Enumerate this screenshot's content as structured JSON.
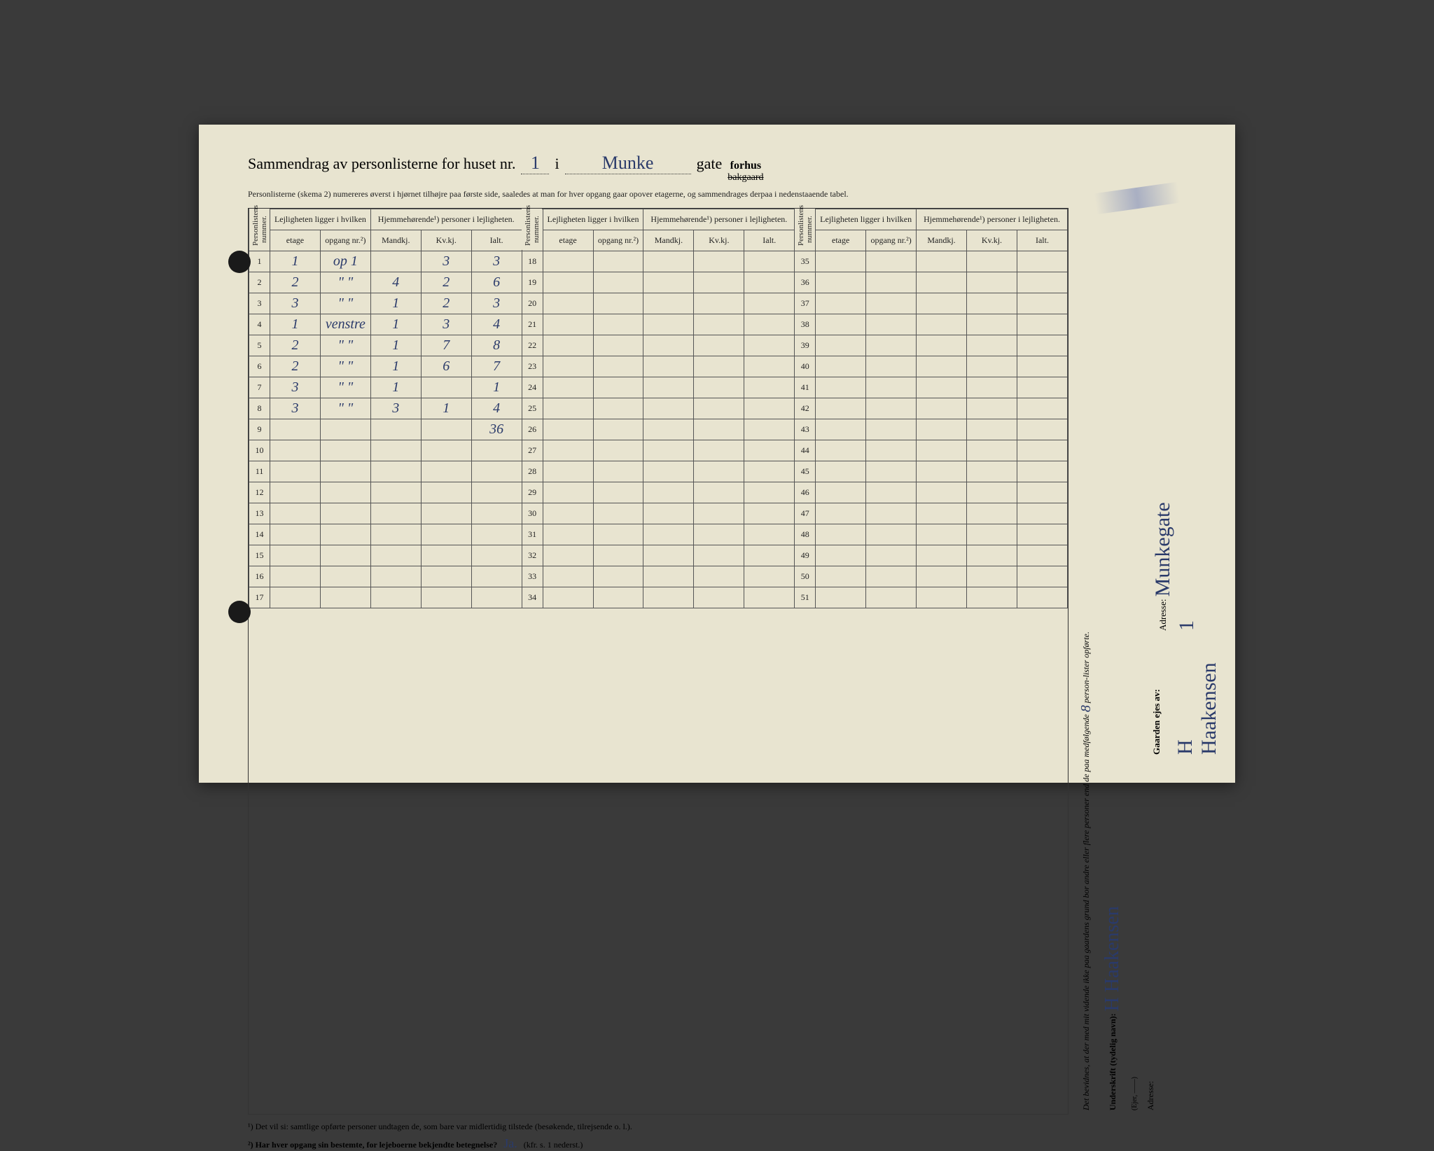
{
  "header": {
    "title_prefix": "Sammendrag av personlisterne for huset nr.",
    "house_nr": "1",
    "i": "i",
    "street": "Munke",
    "gate": "gate",
    "forhus": "forhus",
    "bakgaard_struck": "bakgaard"
  },
  "subheader": "Personlisterne (skema 2) numereres øverst i hjørnet tilhøjre paa første side, saaledes at man for hver opgang gaar opover etagerne, og sammendrages derpaa i nedenstaaende tabel.",
  "columns": {
    "rowhead": "Personlistens nummer.",
    "group_lejl": "Lejligheten ligger i hvilken",
    "group_pers": "Hjemmehørende¹) personer i lejligheten.",
    "etage": "etage",
    "opgang": "opgang nr.²)",
    "mandkj": "Mandkj.",
    "kvkj": "Kv.kj.",
    "ialt": "Ialt."
  },
  "block1_start": 1,
  "block2_start": 18,
  "block3_start": 35,
  "rows_per_block": 17,
  "data_rows": [
    {
      "n": 1,
      "etage": "1",
      "opgang": "op 1",
      "m": "",
      "k": "3",
      "i": "3"
    },
    {
      "n": 2,
      "etage": "2",
      "opgang": "\" \"",
      "m": "4",
      "k": "2",
      "i": "6"
    },
    {
      "n": 3,
      "etage": "3",
      "opgang": "\" \"",
      "m": "1",
      "k": "2",
      "i": "3"
    },
    {
      "n": 4,
      "etage": "1",
      "opgang": "venstre",
      "m": "1",
      "k": "3",
      "i": "4"
    },
    {
      "n": 5,
      "etage": "2",
      "opgang": "\" \"",
      "m": "1",
      "k": "7",
      "i": "8"
    },
    {
      "n": 6,
      "etage": "2",
      "opgang": "\" \"",
      "m": "1",
      "k": "6",
      "i": "7"
    },
    {
      "n": 7,
      "etage": "3",
      "opgang": "\" \"",
      "m": "1",
      "k": "",
      "i": "1"
    },
    {
      "n": 8,
      "etage": "3",
      "opgang": "\" \"",
      "m": "3",
      "k": "1",
      "i": "4"
    }
  ],
  "sum_row": {
    "n": 9,
    "ialt": "36"
  },
  "footer": {
    "note1": "¹)  Det vil si: samtlige opførte personer undtagen de, som bare var midlertidig tilstede (besøkende, tilrejsende o. l.).",
    "note2_prefix": "²)  Har hver opgang sin bestemte, for lejeboerne bekjendte betegnelse?",
    "note2_answer": "Ja.",
    "note2_suffix": "(kfr. s. 1 nederst.)"
  },
  "side_upper": {
    "attest": "Det bevidnes, at der med mit vidende ikke paa gaardens grund bor andre eller flere personer end de paa medfølgende",
    "count": "8",
    "attest2": "person-lister opførte.",
    "underskrift_label": "Underskrift (tydelig navn):",
    "signature": "H Haakensen",
    "ejer": "(Ejer, ——)",
    "adresse_label": "Adresse:"
  },
  "side_lower": {
    "gaarden_label": "Gaarden ejes av:",
    "owner": "H Haakensen",
    "adresse_label": "Adresse:",
    "adresse": "Munkegate 1"
  }
}
